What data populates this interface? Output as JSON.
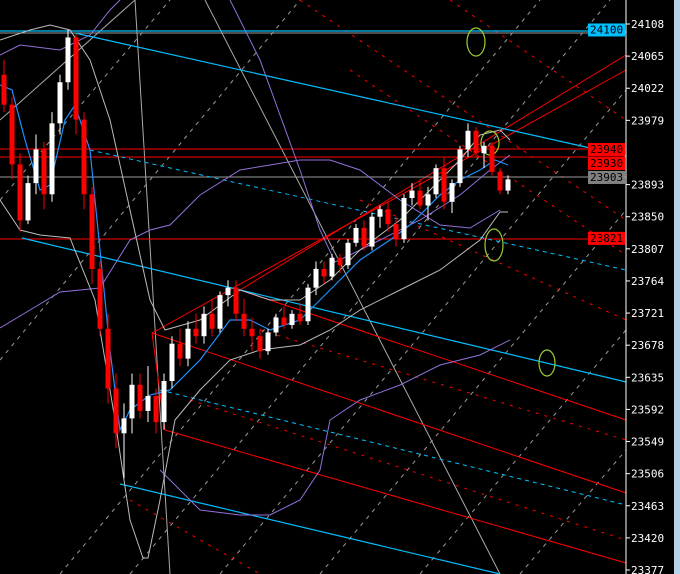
{
  "chart_data": {
    "type": "candlestick",
    "title": "",
    "xlabel": "",
    "ylabel": "",
    "ylim": [
      23377,
      24108
    ],
    "grid": false,
    "background": "#000000",
    "colors": {
      "bull": "#ffffff",
      "bear": "#ff0000",
      "axis": "#ffffff"
    },
    "y_ticks": [
      "24108",
      "24065",
      "24022",
      "23979",
      "23893",
      "23850",
      "23807",
      "23764",
      "23721",
      "23678",
      "23635",
      "23592",
      "23549",
      "23506",
      "23463",
      "23420",
      "23377"
    ],
    "price_labels": [
      {
        "value": 24100,
        "text": "24100",
        "color": "#00bfff",
        "text_color": "#000000"
      },
      {
        "value": 23940,
        "text": "23940",
        "color": "#ff0000",
        "text_color": "#000000"
      },
      {
        "value": 23930,
        "text": "23930",
        "color": "#ff0000",
        "text_color": "#000000"
      },
      {
        "value": 23903,
        "text": "23903",
        "color": "#808080",
        "text_color": "#000000"
      },
      {
        "value": 23821,
        "text": "23821",
        "color": "#ff0000",
        "text_color": "#000000"
      }
    ],
    "ohlc": [
      [
        24040,
        24060,
        23990,
        24000
      ],
      [
        24000,
        24010,
        23900,
        23920
      ],
      [
        23920,
        23935,
        23830,
        23845
      ],
      [
        23845,
        23905,
        23840,
        23895
      ],
      [
        23895,
        23960,
        23880,
        23940
      ],
      [
        23940,
        23950,
        23860,
        23880
      ],
      [
        23880,
        23990,
        23870,
        23975
      ],
      [
        23975,
        24040,
        23960,
        24030
      ],
      [
        24030,
        24100,
        24020,
        24090
      ],
      [
        24090,
        24095,
        23960,
        23980
      ],
      [
        23980,
        23990,
        23860,
        23880
      ],
      [
        23880,
        23890,
        23760,
        23780
      ],
      [
        23780,
        23790,
        23690,
        23700
      ],
      [
        23700,
        23720,
        23600,
        23620
      ],
      [
        23620,
        23640,
        23540,
        23560
      ],
      [
        23560,
        23600,
        23500,
        23580
      ],
      [
        23580,
        23640,
        23560,
        23625
      ],
      [
        23625,
        23640,
        23580,
        23590
      ],
      [
        23590,
        23650,
        23575,
        23610
      ],
      [
        23610,
        23620,
        23560,
        23575
      ],
      [
        23575,
        23640,
        23565,
        23630
      ],
      [
        23630,
        23690,
        23620,
        23680
      ],
      [
        23680,
        23700,
        23650,
        23660
      ],
      [
        23660,
        23710,
        23650,
        23700
      ],
      [
        23700,
        23720,
        23680,
        23690
      ],
      [
        23690,
        23730,
        23680,
        23720
      ],
      [
        23720,
        23740,
        23690,
        23700
      ],
      [
        23700,
        23750,
        23695,
        23745
      ],
      [
        23745,
        23765,
        23730,
        23755
      ],
      [
        23755,
        23765,
        23710,
        23720
      ],
      [
        23720,
        23740,
        23690,
        23700
      ],
      [
        23700,
        23715,
        23670,
        23690
      ],
      [
        23690,
        23700,
        23660,
        23670
      ],
      [
        23670,
        23700,
        23665,
        23695
      ],
      [
        23695,
        23720,
        23690,
        23715
      ],
      [
        23715,
        23730,
        23700,
        23705
      ],
      [
        23705,
        23725,
        23700,
        23720
      ],
      [
        23720,
        23735,
        23705,
        23710
      ],
      [
        23710,
        23760,
        23705,
        23755
      ],
      [
        23755,
        23790,
        23745,
        23780
      ],
      [
        23780,
        23790,
        23760,
        23770
      ],
      [
        23770,
        23800,
        23765,
        23795
      ],
      [
        23795,
        23800,
        23775,
        23785
      ],
      [
        23785,
        23820,
        23780,
        23815
      ],
      [
        23815,
        23840,
        23810,
        23835
      ],
      [
        23835,
        23845,
        23805,
        23810
      ],
      [
        23810,
        23855,
        23805,
        23850
      ],
      [
        23850,
        23865,
        23835,
        23860
      ],
      [
        23860,
        23870,
        23830,
        23840
      ],
      [
        23840,
        23850,
        23810,
        23820
      ],
      [
        23820,
        23880,
        23815,
        23875
      ],
      [
        23875,
        23895,
        23865,
        23885
      ],
      [
        23885,
        23900,
        23860,
        23865
      ],
      [
        23865,
        23890,
        23845,
        23880
      ],
      [
        23880,
        23920,
        23875,
        23915
      ],
      [
        23915,
        23930,
        23860,
        23870
      ],
      [
        23870,
        23900,
        23855,
        23895
      ],
      [
        23895,
        23945,
        23890,
        23940
      ],
      [
        23940,
        23975,
        23930,
        23965
      ],
      [
        23965,
        23970,
        23930,
        23935
      ],
      [
        23935,
        23950,
        23915,
        23945
      ],
      [
        23945,
        23950,
        23905,
        23910
      ],
      [
        23910,
        23915,
        23880,
        23885
      ],
      [
        23885,
        23905,
        23880,
        23900
      ]
    ]
  }
}
